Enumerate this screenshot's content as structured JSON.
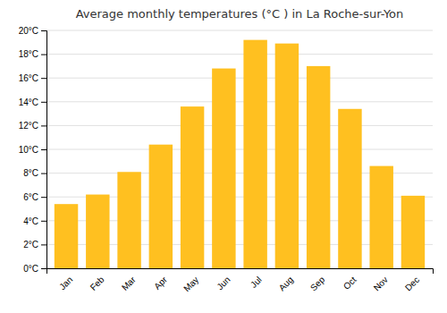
{
  "chart_data": {
    "type": "bar",
    "title": "Average monthly temperatures (°C ) in La Roche-sur-Yon",
    "categories": [
      "Jan",
      "Feb",
      "Mar",
      "Apr",
      "May",
      "Jun",
      "Jul",
      "Aug",
      "Sep",
      "Oct",
      "Nov",
      "Dec"
    ],
    "values": [
      5.4,
      6.2,
      8.1,
      10.4,
      13.6,
      16.8,
      19.2,
      18.9,
      17.0,
      13.4,
      8.6,
      6.1
    ],
    "color": "#FFC020",
    "ylim": [
      0,
      20
    ],
    "yticks": [
      {
        "value": 0,
        "label": "0°C"
      },
      {
        "value": 2,
        "label": "2°C"
      },
      {
        "value": 4,
        "label": "4°C"
      },
      {
        "value": 6,
        "label": "6°C"
      },
      {
        "value": 8,
        "label": "8°C"
      },
      {
        "value": 10,
        "label": "10°C"
      },
      {
        "value": 12,
        "label": "12°C"
      },
      {
        "value": 14,
        "label": "14°C"
      },
      {
        "value": 16,
        "label": "16°C"
      },
      {
        "value": 18,
        "label": "18°C"
      },
      {
        "value": 20,
        "label": "20°C"
      }
    ],
    "grid": true
  }
}
